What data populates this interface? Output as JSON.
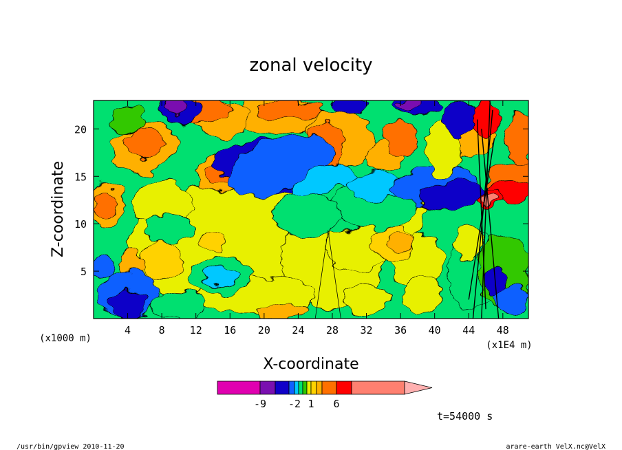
{
  "chart_data": {
    "type": "heatmap",
    "title": "zonal velocity",
    "xlabel": "X-coordinate",
    "ylabel": "Z-coordinate",
    "x_unit": "(x1E4 m)",
    "y_unit": "(x1000 m)",
    "xlim": [
      0,
      51
    ],
    "ylim": [
      0,
      23
    ],
    "x_ticks": [
      4,
      8,
      12,
      16,
      20,
      24,
      28,
      32,
      36,
      40,
      44,
      48
    ],
    "y_ticks": [
      5,
      10,
      15,
      20
    ],
    "colorbar": {
      "tick_labels": [
        "-9",
        "-2",
        "1",
        "6"
      ],
      "colors": [
        "#e000b0",
        "#7a10b0",
        "#1000c8",
        "#1060ff",
        "#00c8ff",
        "#00e070",
        "#30c800",
        "#e8f000",
        "#ffd200",
        "#ffb000",
        "#ff7000",
        "#ff0000",
        "#ff8070",
        "#ffb0b0"
      ]
    },
    "features": [
      {
        "x": 21,
        "z": 16,
        "value": -8
      },
      {
        "x": 37,
        "z": 21,
        "value": -9
      },
      {
        "x": 46,
        "z": 13,
        "value": 9
      },
      {
        "x": 18,
        "z": 9,
        "value": 3
      },
      {
        "x": 9,
        "z": 21,
        "value": -5
      },
      {
        "x": 15,
        "z": 15,
        "value": 5
      },
      {
        "x": 2,
        "z": 12,
        "value": 5
      }
    ]
  },
  "labels": {
    "time": "t=54000 s",
    "footer_left": "/usr/bin/gpview  2010-11-20",
    "footer_right": "arare-earth_VelX.nc@VelX"
  }
}
